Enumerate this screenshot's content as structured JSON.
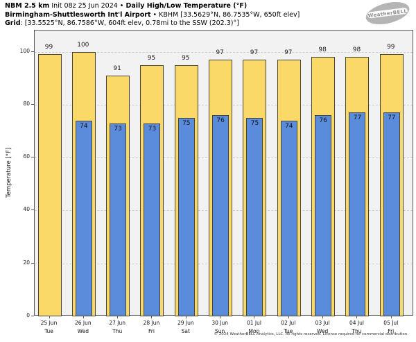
{
  "header": {
    "line1_bold1": "NBM 2.5 km",
    "line1_regular": " Init 08z 25 Jun 2024 • ",
    "line1_bold2": "Daily High/Low Temperature (°F)",
    "line2_bold": "Birmingham-Shuttlesworth Int'l Airport",
    "line2_regular": " • KBHM [33.5629°N, 86.7535°W, 650ft elev]",
    "line3_bold": "Grid",
    "line3_regular": ": [33.5525°N, 86.7586°W, 604ft elev, 0.78mi to the SSW (202.3)°]"
  },
  "logo": {
    "label": "WeatherBELL"
  },
  "chart_data": {
    "type": "bar",
    "ylabel": "Temperature [°F]",
    "ylim": [
      0,
      108
    ],
    "yticks": [
      0,
      20,
      40,
      60,
      80,
      100
    ],
    "grid": "horizontal-dashed",
    "legend_position": "none",
    "categories": [
      {
        "date": "25 Jun",
        "day": "Tue"
      },
      {
        "date": "26 Jun",
        "day": "Wed"
      },
      {
        "date": "27 Jun",
        "day": "Thu"
      },
      {
        "date": "28 Jun",
        "day": "Fri"
      },
      {
        "date": "29 Jun",
        "day": "Sat"
      },
      {
        "date": "30 Jun",
        "day": "Sun"
      },
      {
        "date": "01 Jul",
        "day": "Mon"
      },
      {
        "date": "02 Jul",
        "day": "Tue"
      },
      {
        "date": "03 Jul",
        "day": "Wed"
      },
      {
        "date": "04 Jul",
        "day": "Thu"
      },
      {
        "date": "05 Jul",
        "day": "Fri"
      }
    ],
    "series": [
      {
        "name": "Daily High",
        "color": "#fad968",
        "values": [
          99,
          100,
          91,
          95,
          95,
          97,
          97,
          97,
          98,
          98,
          99
        ]
      },
      {
        "name": "Daily Low",
        "color": "#5b8cdb",
        "values": [
          null,
          74,
          73,
          73,
          75,
          76,
          75,
          74,
          76,
          77,
          77
        ]
      }
    ]
  },
  "footer": {
    "copyright": "© 2024 WeatherBELL Analytics, LLC. All rights reserved. License required for commercial distribution."
  },
  "colors": {
    "high_bar": "#fad968",
    "low_bar": "#5b8cdb",
    "bar_border": "#45453c",
    "plot_bg": "#f2f2f2",
    "grid": "#cccccc",
    "spine": "#555555"
  }
}
